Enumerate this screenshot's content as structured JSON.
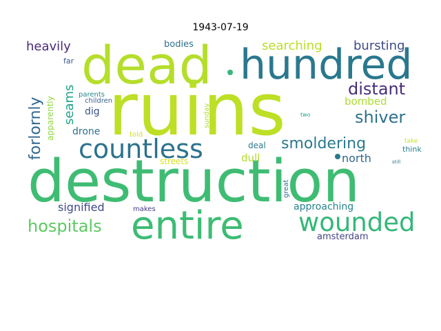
{
  "title": "1943-07-19",
  "words": [
    {
      "text": "ruins",
      "color": "#bddf26",
      "angle": 0
    },
    {
      "text": "destruction",
      "color": "#3fbc73",
      "angle": 0
    },
    {
      "text": "dead",
      "color": "#b5de2b",
      "angle": 0
    },
    {
      "text": "hundred",
      "color": "#2a788e",
      "angle": 0
    },
    {
      "text": "entire",
      "color": "#3dbc74",
      "angle": 0
    },
    {
      "text": "countless",
      "color": "#2c728e",
      "angle": 0
    },
    {
      "text": "wounded",
      "color": "#35b779",
      "angle": 0
    },
    {
      "text": "hospitals",
      "color": "#5ec962",
      "angle": 0
    },
    {
      "text": "distant",
      "color": "#472d7b",
      "angle": 0
    },
    {
      "text": "shiver",
      "color": "#2d718e",
      "angle": 0
    },
    {
      "text": "smoldering",
      "color": "#2a788e",
      "angle": 0
    },
    {
      "text": "forlornly",
      "color": "#31688e",
      "angle": -90
    },
    {
      "text": "searching",
      "color": "#b8de29",
      "angle": 0
    },
    {
      "text": "bursting",
      "color": "#3e4a89",
      "angle": 0
    },
    {
      "text": "heavily",
      "color": "#482878",
      "angle": 0
    },
    {
      "text": "seams",
      "color": "#1fa287",
      "angle": -90
    },
    {
      "text": "bombed",
      "color": "#addc30",
      "angle": 0
    },
    {
      "text": "signified",
      "color": "#3e4989",
      "angle": 0
    },
    {
      "text": "north",
      "color": "#31668e",
      "angle": 0
    },
    {
      "text": "approaching",
      "color": "#26828e",
      "angle": 0
    },
    {
      "text": "dull",
      "color": "#b2dd2d",
      "angle": 0
    },
    {
      "text": "dig",
      "color": "#3b528b",
      "angle": 0
    },
    {
      "text": "drone",
      "color": "#2e6e8e",
      "angle": 0
    },
    {
      "text": "amsterdam",
      "color": "#414487",
      "angle": 0
    },
    {
      "text": "bodies",
      "color": "#2e6f8e",
      "angle": 0
    },
    {
      "text": "apparently",
      "color": "#90d743",
      "angle": -90
    },
    {
      "text": "streets",
      "color": "#d8e219",
      "angle": 0
    },
    {
      "text": "deal",
      "color": "#2a788e",
      "angle": 0
    },
    {
      "text": "think",
      "color": "#277f8e",
      "angle": 0
    },
    {
      "text": "children",
      "color": "#34618d",
      "angle": 0
    },
    {
      "text": "parents",
      "color": "#23898e",
      "angle": 0
    },
    {
      "text": "far",
      "color": "#3a548c",
      "angle": 0
    },
    {
      "text": "sunday",
      "color": "#addc30",
      "angle": -90
    },
    {
      "text": "told",
      "color": "#cde11d",
      "angle": 0
    },
    {
      "text": "makes",
      "color": "#443a83",
      "angle": 0
    },
    {
      "text": "great",
      "color": "#2c728e",
      "angle": -90
    },
    {
      "text": "two",
      "color": "#1f9e89",
      "angle": 0
    },
    {
      "text": "take",
      "color": "#cae11f",
      "angle": 0
    },
    {
      "text": "still",
      "color": "#2a788e",
      "angle": 0
    }
  ]
}
